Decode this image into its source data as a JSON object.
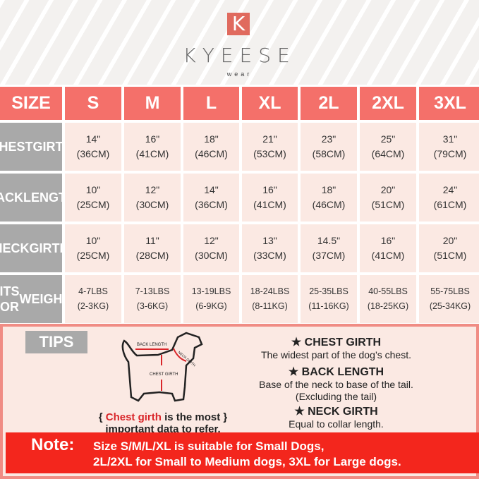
{
  "brand": {
    "logo_letter": "K",
    "name": "KYEESE",
    "sub": "wear"
  },
  "table": {
    "header": [
      "SIZE",
      "S",
      "M",
      "L",
      "XL",
      "2L",
      "2XL",
      "3XL"
    ],
    "rows": [
      {
        "label": [
          "CHEST",
          "GIRTH"
        ],
        "cells": [
          [
            "14\"",
            "(36CM)"
          ],
          [
            "16\"",
            "(41CM)"
          ],
          [
            "18\"",
            "(46CM)"
          ],
          [
            "21\"",
            "(53CM)"
          ],
          [
            "23\"",
            "(58CM)"
          ],
          [
            "25\"",
            "(64CM)"
          ],
          [
            "31\"",
            "(79CM)"
          ]
        ]
      },
      {
        "label": [
          "BACK",
          "LENGTH"
        ],
        "cells": [
          [
            "10\"",
            "(25CM)"
          ],
          [
            "12\"",
            "(30CM)"
          ],
          [
            "14\"",
            "(36CM)"
          ],
          [
            "16\"",
            "(41CM)"
          ],
          [
            "18\"",
            "(46CM)"
          ],
          [
            "20\"",
            "(51CM)"
          ],
          [
            "24\"",
            "(61CM)"
          ]
        ]
      },
      {
        "label": [
          "NECK",
          "GIRTH"
        ],
        "cells": [
          [
            "10\"",
            "(25CM)"
          ],
          [
            "11\"",
            "(28CM)"
          ],
          [
            "12\"",
            "(30CM)"
          ],
          [
            "13\"",
            "(33CM)"
          ],
          [
            "14.5\"",
            "(37CM)"
          ],
          [
            "16\"",
            "(41CM)"
          ],
          [
            "20\"",
            "(51CM)"
          ]
        ]
      },
      {
        "label": [
          "FITS FOR",
          "WEIGHT"
        ],
        "cells": [
          [
            "4-7LBS",
            "(2-3KG)"
          ],
          [
            "7-13LBS",
            "(3-6KG)"
          ],
          [
            "13-19LBS",
            "(6-9KG)"
          ],
          [
            "18-24LBS",
            "(8-11KG)"
          ],
          [
            "25-35LBS",
            "(11-16KG)"
          ],
          [
            "40-55LBS",
            "(18-25KG)"
          ],
          [
            "55-75LBS",
            "(25-34KG)"
          ]
        ]
      }
    ]
  },
  "tips": {
    "label": "TIPS",
    "diagram": {
      "back": "BACK LENGTH",
      "neck": "NECK GIRTH",
      "chest": "CHEST GIRTH"
    },
    "emphasis_red": "Chest girth",
    "emphasis_rest": " is the most",
    "emphasis_line2": "important data to refer.",
    "defs": [
      {
        "title": "★ CHEST GIRTH",
        "lines": [
          "The widest part of the dog’s chest."
        ]
      },
      {
        "title": "★ BACK LENGTH",
        "lines": [
          "Base of the neck to base of the tail.",
          "(Excluding the tail)"
        ]
      },
      {
        "title": "★ NECK GIRTH",
        "lines": [
          "Equal to collar length."
        ]
      }
    ]
  },
  "note": {
    "label": "Note:",
    "line1": "Size S/M/L/XL is suitable for Small Dogs,",
    "line2": "2L/2XL for Small to Medium dogs, 3XL for Large dogs."
  },
  "colors": {
    "header": "#f4706a",
    "label": "#a9a9a9",
    "cell": "#fbe9e3",
    "note": "#f3261d"
  }
}
